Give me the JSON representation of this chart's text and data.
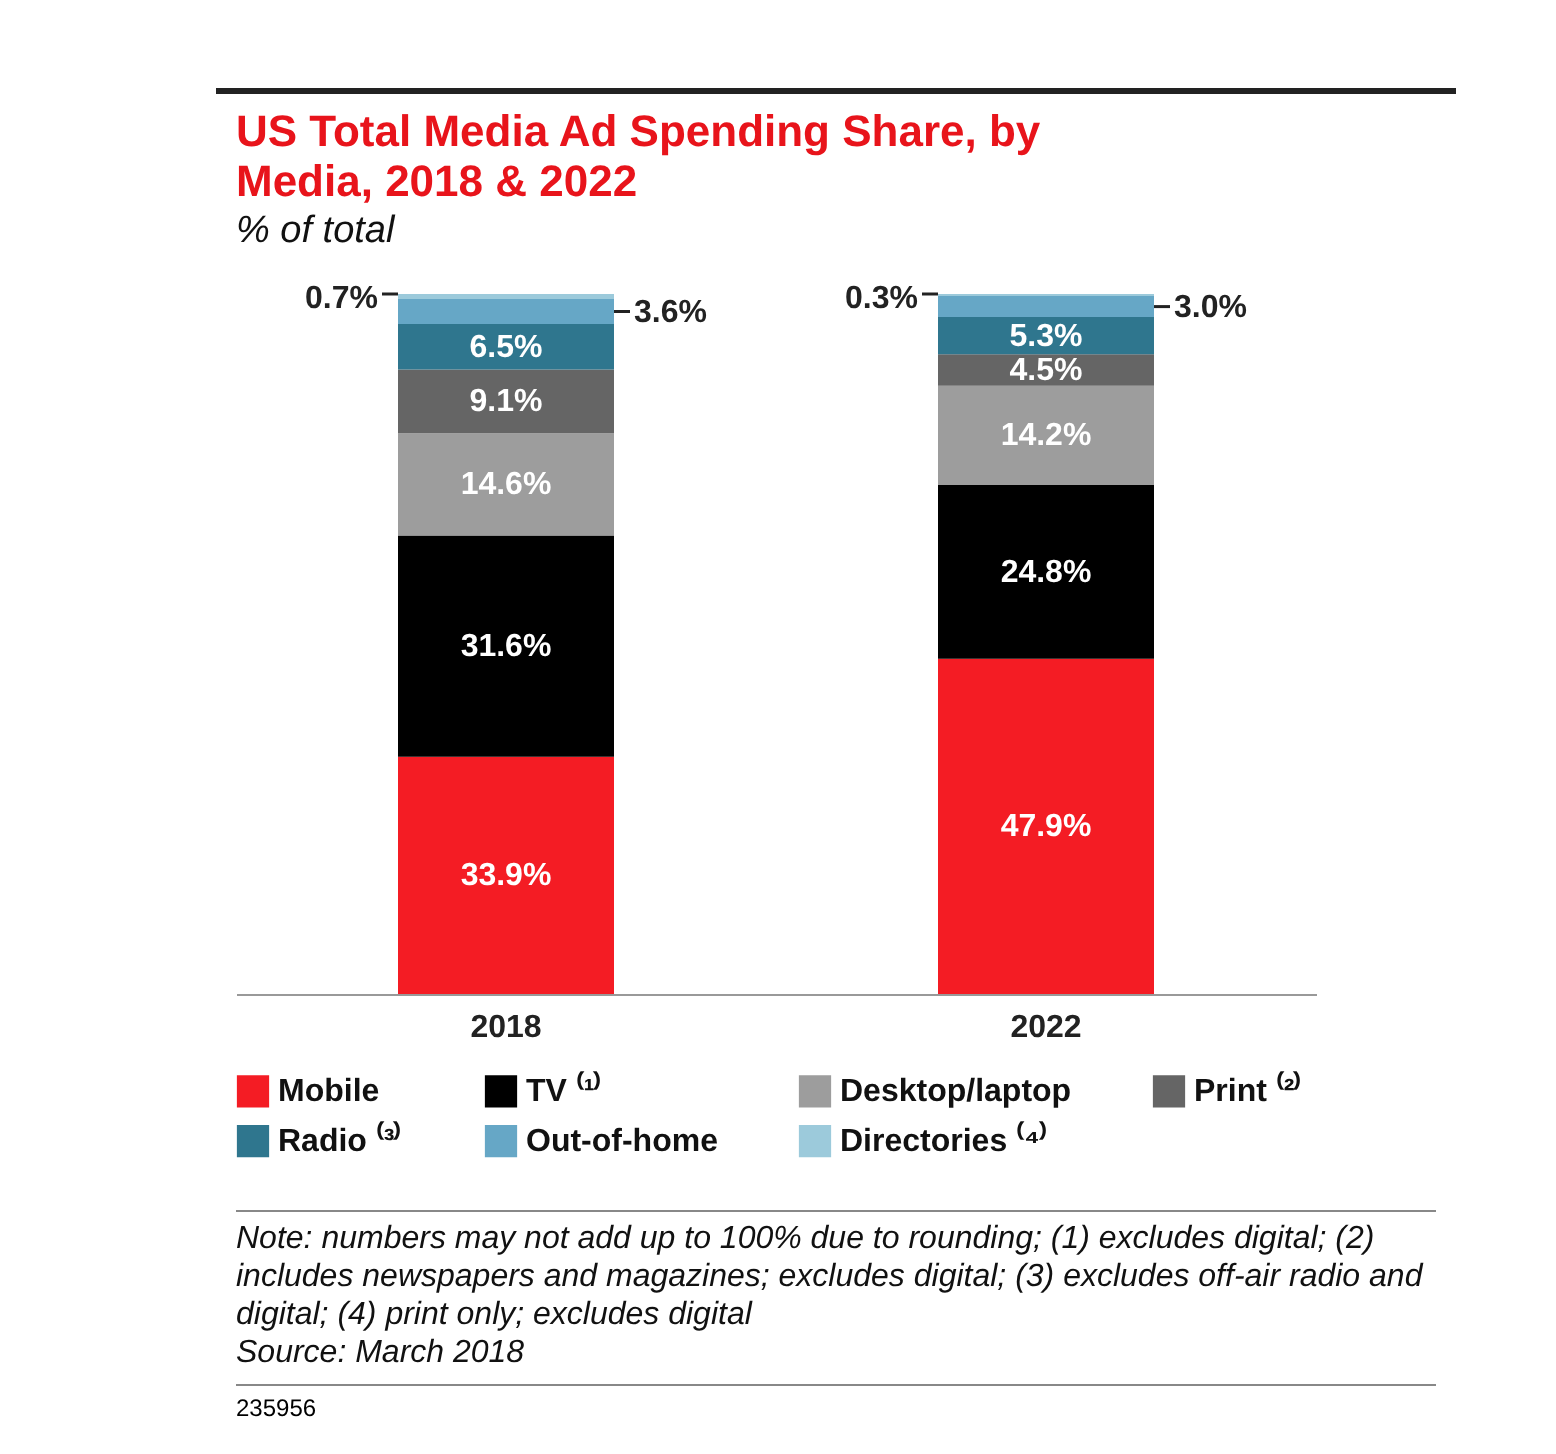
{
  "chart_data": {
    "type": "bar",
    "stacked": true,
    "legend": "bottom",
    "grid": false,
    "title": "US Total Media Ad Spending Share, by Media, 2018 & 2022",
    "subtitle": "% of total",
    "categories": [
      "2018",
      "2022"
    ],
    "series": [
      {
        "name": "Mobile",
        "color": "#f41c24",
        "values": [
          33.9,
          47.9
        ],
        "value_labels": [
          "33.9%",
          "47.9%"
        ]
      },
      {
        "name": "TV ⁽¹⁾",
        "color": "#000000",
        "values": [
          31.6,
          24.8
        ],
        "value_labels": [
          "31.6%",
          "24.8%"
        ]
      },
      {
        "name": "Desktop/laptop",
        "color": "#9d9d9d",
        "values": [
          14.6,
          14.2
        ],
        "value_labels": [
          "14.6%",
          "14.2%"
        ]
      },
      {
        "name": "Print ⁽²⁾",
        "color": "#656565",
        "values": [
          9.1,
          4.5
        ],
        "value_labels": [
          "9.1%",
          "4.5%"
        ]
      },
      {
        "name": "Radio ⁽³⁾",
        "color": "#2f768e",
        "values": [
          6.5,
          5.3
        ],
        "value_labels": [
          "6.5%",
          "5.3%"
        ]
      },
      {
        "name": "Out-of-home",
        "color": "#66a7c6",
        "values": [
          3.6,
          3.0
        ],
        "value_labels": [
          "3.6%",
          "3.0%"
        ]
      },
      {
        "name": "Directories ⁽⁴⁾",
        "color": "#9ccadb",
        "values": [
          0.7,
          0.3
        ],
        "value_labels": [
          "0.7%",
          "0.3%"
        ]
      }
    ],
    "annotations": [
      "Note: numbers may not add up to 100% due to rounding; (1) excludes digital; (2) includes newspapers and magazines; excludes digital; (3) excludes off-air radio and digital; (4) print only; excludes digital",
      "Source: March 2018",
      "235956"
    ]
  }
}
